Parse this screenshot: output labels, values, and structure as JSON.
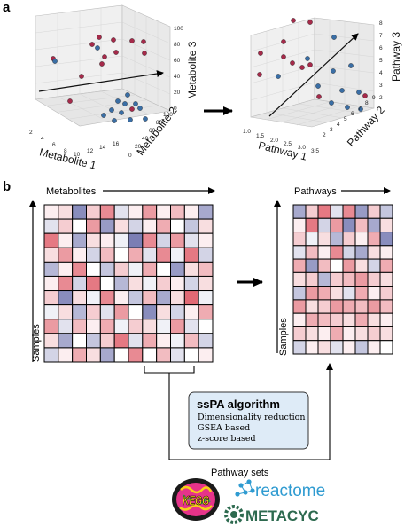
{
  "panels": {
    "a": {
      "letter": "a"
    },
    "b": {
      "letter": "b"
    }
  },
  "plot_left": {
    "x_title": "Metabolite 1",
    "y_title": "Metabolite 2",
    "z_title": "Metabolite 3",
    "x_ticks": [
      "2",
      "4",
      "6",
      "8",
      "10",
      "12",
      "14",
      "16"
    ],
    "y_ticks": [
      "0",
      "20",
      "40",
      "60",
      "80",
      "100"
    ],
    "z_ticks": [
      "0",
      "20",
      "40",
      "60",
      "80",
      "100"
    ],
    "cluster_top_color": "#a52a4a",
    "cluster_bottom_color": "#3a6ea5"
  },
  "plot_right": {
    "x_title": "Pathway 1",
    "y_title": "Pathway 2",
    "z_title": "Pathway 3",
    "x_ticks": [
      "1.0",
      "1.5",
      "2.0",
      "2.5",
      "3.0",
      "3.5"
    ],
    "y_ticks": [
      "2",
      "3",
      "4",
      "5",
      "6",
      "7",
      "8",
      "9"
    ],
    "z_ticks": [
      "2",
      "3",
      "4",
      "5",
      "6",
      "7",
      "8"
    ]
  },
  "heatmap_left": {
    "top_label": "Metabolites",
    "side_label": "Samples",
    "cols": 12,
    "rows": 11,
    "cells": [
      [
        0.1,
        0.2,
        -0.8,
        0.3,
        0.7,
        -0.2,
        0.1,
        0.6,
        0.1,
        0.4,
        0.1,
        -0.6
      ],
      [
        -0.2,
        0.3,
        0.0,
        0.6,
        -0.7,
        0.2,
        -0.3,
        0.1,
        0.5,
        0.0,
        -0.4,
        0.2
      ],
      [
        0.8,
        0.1,
        -0.6,
        0.2,
        0.1,
        -0.1,
        -0.9,
        0.7,
        -0.3,
        0.6,
        -0.2,
        0.1
      ],
      [
        0.2,
        0.6,
        0.1,
        -0.3,
        0.4,
        0.0,
        0.5,
        -0.2,
        0.7,
        -0.1,
        0.8,
        -0.3
      ],
      [
        -0.5,
        0.1,
        0.7,
        0.0,
        -0.4,
        0.3,
        -0.1,
        0.5,
        0.0,
        -0.7,
        0.2,
        0.4
      ],
      [
        0.1,
        0.7,
        -0.3,
        0.8,
        0.0,
        -0.5,
        0.2,
        -0.1,
        0.3,
        0.1,
        -0.3,
        0.2
      ],
      [
        0.3,
        -0.8,
        0.2,
        -0.1,
        0.7,
        0.1,
        -0.4,
        0.4,
        -0.6,
        0.2,
        0.9,
        -0.1
      ],
      [
        -0.1,
        0.2,
        -0.5,
        0.3,
        -0.2,
        0.6,
        0.0,
        -0.8,
        0.2,
        -0.3,
        0.1,
        0.5
      ],
      [
        0.6,
        -0.2,
        0.4,
        0.1,
        0.5,
        -0.1,
        0.3,
        0.2,
        -0.1,
        0.6,
        -0.2,
        0.0
      ],
      [
        0.2,
        -0.6,
        0.0,
        -0.4,
        0.3,
        0.8,
        -0.2,
        0.5,
        0.1,
        -0.1,
        0.4,
        -0.3
      ],
      [
        -0.3,
        0.1,
        0.5,
        0.2,
        -0.6,
        0.0,
        0.7,
        0.0,
        0.4,
        -0.2,
        0.0,
        0.1
      ]
    ]
  },
  "heatmap_right": {
    "top_label": "Pathways",
    "side_label": "Samples",
    "cols": 8,
    "rows": 11,
    "cells": [
      [
        -0.6,
        0.3,
        0.8,
        -0.2,
        0.7,
        -0.7,
        0.3,
        -0.4
      ],
      [
        0.1,
        0.8,
        -0.3,
        0.6,
        -0.8,
        0.4,
        -0.6,
        0.2
      ],
      [
        0.3,
        -0.1,
        0.2,
        -0.5,
        0.3,
        0.1,
        0.5,
        -0.8
      ],
      [
        -0.2,
        0.4,
        0.1,
        0.7,
        -0.3,
        -0.6,
        0.2,
        0.1
      ],
      [
        0.5,
        -0.7,
        0.4,
        0.0,
        0.6,
        0.2,
        -0.3,
        0.5
      ],
      [
        0.2,
        0.3,
        -0.5,
        0.3,
        0.4,
        0.6,
        0.3,
        0.2
      ],
      [
        -0.4,
        0.6,
        0.5,
        0.2,
        -0.2,
        0.5,
        0.1,
        0.3
      ],
      [
        0.6,
        0.2,
        0.3,
        0.6,
        0.5,
        0.4,
        0.6,
        0.4
      ],
      [
        0.1,
        0.5,
        0.4,
        0.3,
        0.2,
        0.5,
        0.2,
        0.1
      ],
      [
        0.3,
        0.2,
        0.1,
        0.5,
        0.1,
        0.2,
        0.3,
        0.2
      ],
      [
        -0.3,
        0.1,
        0.2,
        -0.2,
        0.1,
        -0.4,
        0.1,
        0.0
      ]
    ]
  },
  "algorithm_box": {
    "title": "ssPA algorithm",
    "lines": [
      "Dimensionality reduction",
      "GSEA based",
      "z-score based"
    ]
  },
  "pathway_sets": {
    "label": "Pathway sets",
    "logos": {
      "kegg": "KEGG",
      "reactome": "reactome",
      "metacyc": "METACYC"
    },
    "reactome_color": "#2f9bd1",
    "metacyc_color": "#2d6a4f"
  }
}
